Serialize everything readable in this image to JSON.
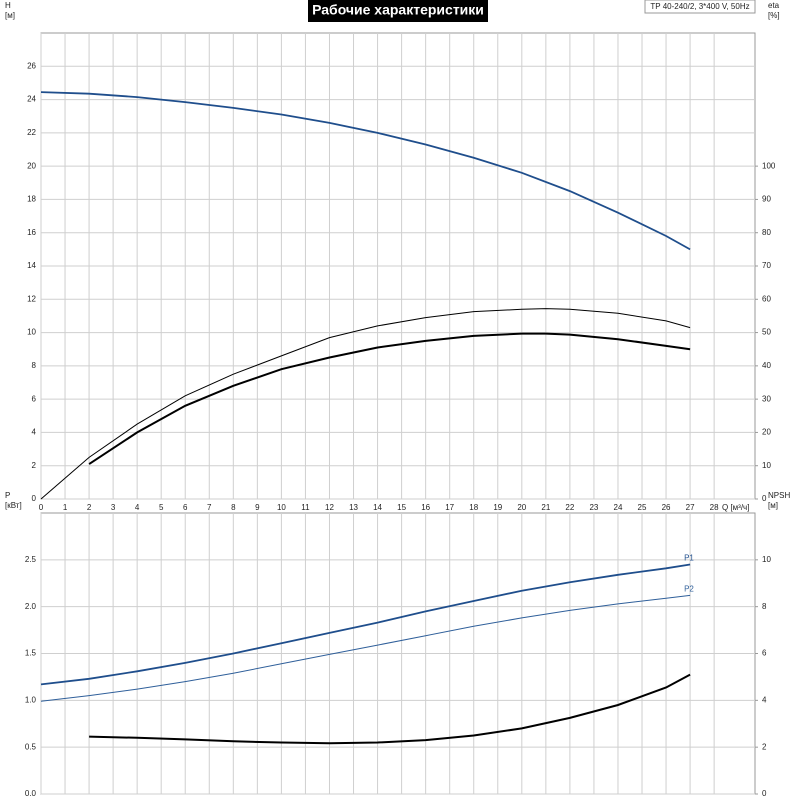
{
  "chart_data": [
    {
      "type": "line",
      "title": "Рабочие характеристики",
      "annotation": "TP 40-240/2, 3*400 V, 50Hz",
      "ylabel": [
        "H",
        "[м]"
      ],
      "y2label": [
        "eta",
        "[%]"
      ],
      "xlabel": "Q [м³/ч]",
      "xlim": [
        0,
        29.7
      ],
      "xticks": [
        0,
        1,
        2,
        3,
        4,
        5,
        6,
        7,
        8,
        9,
        10,
        11,
        12,
        13,
        14,
        15,
        16,
        17,
        18,
        19,
        20,
        21,
        22,
        23,
        24,
        25,
        26,
        27,
        28
      ],
      "ylim": [
        0,
        28
      ],
      "yticks": [
        0,
        2,
        4,
        6,
        8,
        10,
        12,
        14,
        16,
        18,
        20,
        22,
        24,
        26
      ],
      "y2lim": [
        0,
        140
      ],
      "y2ticks": [
        0,
        10,
        20,
        30,
        40,
        50,
        60,
        70,
        80,
        90,
        100
      ],
      "grid": true,
      "xtick_labels": true,
      "series": [
        {
          "color": "#1f4e8c",
          "width": 1.8,
          "x": [
            0,
            2,
            4,
            6,
            8,
            10,
            12,
            14,
            16,
            18,
            20,
            22,
            24,
            26,
            27
          ],
          "values": [
            24.45,
            24.35,
            24.15,
            23.85,
            23.5,
            23.1,
            22.6,
            22.0,
            21.3,
            20.5,
            19.6,
            18.5,
            17.2,
            15.8,
            15.0
          ]
        },
        {
          "color": "#000000",
          "width": 2,
          "axis": "y2",
          "x": [
            2,
            4,
            6,
            8,
            10,
            12,
            14,
            16,
            18,
            20,
            21,
            22,
            24,
            26,
            27
          ],
          "values": [
            10.5,
            20,
            28,
            34,
            39,
            42.5,
            45.5,
            47.5,
            49,
            49.7,
            49.7,
            49.4,
            48,
            46,
            45
          ]
        },
        {
          "color": "#000000",
          "width": 1,
          "axis": "y2",
          "x": [
            0,
            2,
            4,
            6,
            8,
            10,
            12,
            14,
            16,
            18,
            20,
            21,
            22,
            24,
            26,
            27
          ],
          "values": [
            0,
            12.5,
            22.5,
            31,
            37.5,
            43,
            48.5,
            52,
            54.5,
            56.3,
            57,
            57.2,
            57,
            55.8,
            53.5,
            51.5
          ]
        }
      ]
    },
    {
      "type": "line",
      "ylabel": [
        "P",
        "[кВт]"
      ],
      "y2label": [
        "NPSH",
        "[м]"
      ],
      "xlim": [
        0,
        29.7
      ],
      "xticks": [
        0,
        1,
        2,
        3,
        4,
        5,
        6,
        7,
        8,
        9,
        10,
        11,
        12,
        13,
        14,
        15,
        16,
        17,
        18,
        19,
        20,
        21,
        22,
        23,
        24,
        25,
        26,
        27,
        28
      ],
      "ylim": [
        0,
        3.0
      ],
      "yticks": [
        {
          "value": 0,
          "label": "0.0"
        },
        0.5,
        {
          "value": 1,
          "label": "1.0"
        },
        1.5,
        {
          "value": 2,
          "label": "2.0"
        },
        2.5
      ],
      "y2lim": [
        0,
        12
      ],
      "y2ticks": [
        0,
        2,
        4,
        6,
        8,
        10
      ],
      "grid": true,
      "xtick_labels": false,
      "series": [
        {
          "name": "P1",
          "color": "#1f4e8c",
          "width": 1.8,
          "x": [
            0,
            2,
            4,
            6,
            8,
            10,
            12,
            14,
            16,
            18,
            20,
            22,
            24,
            26,
            27
          ],
          "values": [
            1.17,
            1.23,
            1.31,
            1.4,
            1.5,
            1.61,
            1.72,
            1.83,
            1.95,
            2.06,
            2.17,
            2.26,
            2.34,
            2.41,
            2.45
          ]
        },
        {
          "name": "P2",
          "color": "#2f5f9a",
          "width": 1,
          "x": [
            0,
            2,
            4,
            6,
            8,
            10,
            12,
            14,
            16,
            18,
            20,
            22,
            24,
            26,
            27
          ],
          "values": [
            0.99,
            1.05,
            1.12,
            1.2,
            1.29,
            1.39,
            1.49,
            1.59,
            1.69,
            1.79,
            1.88,
            1.96,
            2.03,
            2.09,
            2.12
          ]
        },
        {
          "color": "#000000",
          "width": 2,
          "axis": "y2",
          "x": [
            2,
            4,
            6,
            8,
            10,
            12,
            14,
            16,
            18,
            20,
            22,
            24,
            26,
            27
          ],
          "values": [
            2.45,
            2.4,
            2.33,
            2.25,
            2.2,
            2.17,
            2.2,
            2.3,
            2.5,
            2.8,
            3.25,
            3.8,
            4.55,
            5.1
          ]
        }
      ]
    }
  ]
}
